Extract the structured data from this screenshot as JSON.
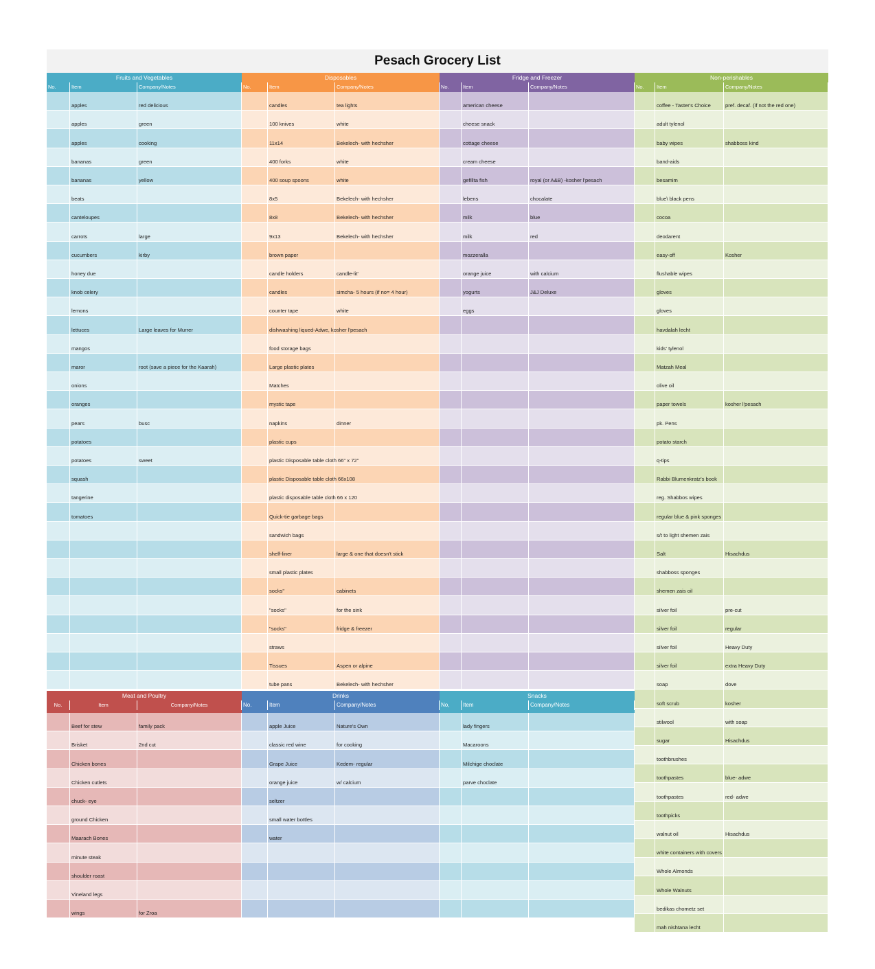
{
  "title": "Pesach Grocery List",
  "headers": {
    "no": "No.",
    "item": "Item",
    "notes": "Company/Notes"
  },
  "snacks_no_header": "No,",
  "sections": {
    "fruits": {
      "name": "Fruits and Vegetables",
      "colors": {
        "header": "#4bacc6",
        "dark": "#b7dde8",
        "light": "#dbeef3"
      },
      "rows": [
        [
          "apples",
          "red delicious"
        ],
        [
          "apples",
          "green"
        ],
        [
          "apples",
          "cooking"
        ],
        [
          "bananas",
          "green"
        ],
        [
          "bananas",
          "yellow"
        ],
        [
          "beats",
          ""
        ],
        [
          "canteloupes",
          ""
        ],
        [
          "carrots",
          "large"
        ],
        [
          "cucumbers",
          " kirby"
        ],
        [
          "honey due",
          ""
        ],
        [
          "knob celery",
          ""
        ],
        [
          "lemons",
          ""
        ],
        [
          "lettuces",
          "Large leaves for Murrer"
        ],
        [
          "mangos",
          ""
        ],
        [
          "maror",
          "root (save a piece for the Kaarah)"
        ],
        [
          "onions",
          ""
        ],
        [
          "oranges",
          ""
        ],
        [
          "pears",
          "busc"
        ],
        [
          "potatoes",
          ""
        ],
        [
          "potatoes",
          "sweet"
        ],
        [
          "squash",
          ""
        ],
        [
          "tangerine",
          ""
        ],
        [
          "tomatoes",
          ""
        ],
        [
          "",
          ""
        ],
        [
          "",
          ""
        ],
        [
          "",
          ""
        ],
        [
          "",
          ""
        ],
        [
          "",
          ""
        ],
        [
          "",
          ""
        ],
        [
          "",
          ""
        ],
        [
          "",
          ""
        ],
        [
          "",
          ""
        ]
      ]
    },
    "disposables": {
      "name": "Disposables",
      "colors": {
        "header": "#f79646",
        "dark": "#fcd5b4",
        "light": "#fde9d9"
      },
      "rows": [
        [
          " candles",
          "tea lights"
        ],
        [
          "100 knives",
          "white"
        ],
        [
          "11x14",
          "Bekelech- with hechsher"
        ],
        [
          "400 forks",
          "white"
        ],
        [
          "400 soup spoons",
          "white"
        ],
        [
          "8x5",
          "Bekelech- with hechsher"
        ],
        [
          "8x8",
          "Bekelech- with hechsher"
        ],
        [
          "9x13",
          "Bekelech- with hechsher"
        ],
        [
          "brown paper",
          ""
        ],
        [
          "candle holders",
          "candle-lit'"
        ],
        [
          "candles",
          "simcha- 5 hours (if no= 4 hour)"
        ],
        [
          "counter tape",
          "white"
        ],
        [
          "dishwashing liqued-Adwe, kosher l'pesach",
          ""
        ],
        [
          "food storage bags",
          ""
        ],
        [
          "Large plastic plates",
          ""
        ],
        [
          "Matches",
          ""
        ],
        [
          "mystic tape",
          ""
        ],
        [
          "napkins",
          "dinner"
        ],
        [
          "plastic cups",
          ""
        ],
        [
          "plastic Disposable table cloth   66\" x 72\"",
          ""
        ],
        [
          "plastic Disposable table cloth   66x108",
          ""
        ],
        [
          "plastic disposable table cloth 66 x 120",
          ""
        ],
        [
          "Quick-tie garbage bags",
          ""
        ],
        [
          "sandwich bags",
          ""
        ],
        [
          "shelf-liner",
          "large &  one that doesn't stick"
        ],
        [
          "small plastic plates",
          ""
        ],
        [
          "socks\"",
          "cabinets"
        ],
        [
          "\"socks\"",
          "for the sink"
        ],
        [
          "\"socks\"",
          "fridge & freezer"
        ],
        [
          "straws",
          ""
        ],
        [
          "Tissues",
          "Aspen or alpine"
        ],
        [
          "tube pans",
          "Bekelech- with hechsher"
        ]
      ]
    },
    "fridge": {
      "name": "Fridge and Freezer",
      "colors": {
        "header": "#8064a2",
        "dark": "#ccc0da",
        "light": "#e4dfec"
      },
      "rows": [
        [
          "american cheese",
          ""
        ],
        [
          "cheese snack",
          ""
        ],
        [
          "cottage cheese",
          ""
        ],
        [
          "cream cheese",
          ""
        ],
        [
          "gefillta fish",
          "royal (or A&B) -kosher l'pesach"
        ],
        [
          "lebens",
          "chocalate"
        ],
        [
          "milk",
          "blue"
        ],
        [
          "milk",
          "red"
        ],
        [
          "mozzeralla",
          ""
        ],
        [
          "orange juice",
          " with calcium"
        ],
        [
          "yogurts",
          "J&J Deluxe"
        ],
        [
          "eggs",
          ""
        ],
        [
          "",
          ""
        ],
        [
          "",
          ""
        ],
        [
          "",
          ""
        ],
        [
          "",
          ""
        ],
        [
          "",
          ""
        ],
        [
          "",
          ""
        ],
        [
          "",
          ""
        ],
        [
          "",
          ""
        ],
        [
          "",
          ""
        ],
        [
          "",
          ""
        ],
        [
          "",
          ""
        ],
        [
          "",
          ""
        ],
        [
          "",
          ""
        ],
        [
          "",
          ""
        ],
        [
          "",
          ""
        ],
        [
          "",
          ""
        ],
        [
          "",
          ""
        ],
        [
          "",
          ""
        ],
        [
          "",
          ""
        ],
        [
          "",
          ""
        ]
      ]
    },
    "nonperishables": {
      "name": "Non-perishables",
      "colors": {
        "header": "#9bbb59",
        "dark": "#d8e4bc",
        "light": "#ebf1de"
      },
      "rows": [
        [
          " coffee - Taster's Choice",
          "pref. decaf. (if not the red one)"
        ],
        [
          "adult tylenol",
          ""
        ],
        [
          "baby wipes",
          "shabboss kind"
        ],
        [
          "band-aids",
          ""
        ],
        [
          "besamim",
          ""
        ],
        [
          "blue\\ black pens",
          ""
        ],
        [
          "cocoa",
          ""
        ],
        [
          "deodarent",
          ""
        ],
        [
          "easy-off",
          "Kosher"
        ],
        [
          "flushable wipes",
          ""
        ],
        [
          "gloves",
          ""
        ],
        [
          "gloves",
          ""
        ],
        [
          "havdalah lecht",
          ""
        ],
        [
          "kids' tylenol",
          ""
        ],
        [
          "Matzah Meal",
          ""
        ],
        [
          "olive oil",
          ""
        ],
        [
          "paper towels",
          "kosher l'pesach"
        ],
        [
          "pk. Pens",
          ""
        ],
        [
          "potato starch",
          ""
        ],
        [
          "q-tips",
          ""
        ],
        [
          "Rabbi Blumenkratz's book",
          ""
        ],
        [
          "reg. Shabbos wipes",
          ""
        ],
        [
          "regular blue & pink sponges",
          ""
        ],
        [
          "s/t to light shemen zais",
          ""
        ],
        [
          "Salt",
          "Hisachdus"
        ],
        [
          "shabboss sponges",
          ""
        ],
        [
          "shemen zais oil",
          ""
        ],
        [
          "silver foil",
          "pre-cut"
        ],
        [
          "silver foil",
          "regular"
        ],
        [
          "silver foil",
          "Heavy Duty"
        ],
        [
          "silver foil",
          "extra Heavy Duty"
        ],
        [
          "soap",
          "dove"
        ],
        [
          "soft scrub",
          "kosher"
        ],
        [
          "stilwool",
          "with soap"
        ],
        [
          "sugar",
          "Hisachdus"
        ],
        [
          "toothbrushes",
          ""
        ],
        [
          "toothpastes",
          "blue- adwe"
        ],
        [
          "toothpastes",
          "red- adwe"
        ],
        [
          "toothpicks",
          ""
        ],
        [
          "walnut oil",
          "Hisachdus"
        ],
        [
          "white containers with covers",
          ""
        ],
        [
          "Whole Almonds",
          ""
        ],
        [
          "Whole Walnuts",
          ""
        ],
        [
          "bedikas chometz set",
          ""
        ],
        [
          "mah nishtana lecht",
          ""
        ]
      ]
    },
    "meat": {
      "name": "Meat and Poultry",
      "colors": {
        "header": "#c0504d",
        "dark": "#e6b8b7",
        "light": "#f2dcdb"
      },
      "rows": [
        [
          "Beef for stew",
          "family pack"
        ],
        [
          "Brisket",
          "2nd cut"
        ],
        [
          "Chicken bones",
          ""
        ],
        [
          "Chicken cutlets",
          ""
        ],
        [
          "chuck- eye",
          ""
        ],
        [
          "ground Chicken",
          ""
        ],
        [
          "Maarach Bones",
          ""
        ],
        [
          "minute steak",
          ""
        ],
        [
          "shoulder roast",
          ""
        ],
        [
          "Vineland legs",
          ""
        ],
        [
          "wings",
          "for Zroa"
        ]
      ]
    },
    "drinks": {
      "name": "Drinks",
      "colors": {
        "header": "#4f81bd",
        "dark": "#b8cce4",
        "light": "#dce6f1"
      },
      "rows": [
        [
          "apple Juice",
          "Nature's Own"
        ],
        [
          "classic red wine",
          "for cooking"
        ],
        [
          "Grape Juice",
          "Kedem- regular"
        ],
        [
          "orange juice",
          "w/ calcium"
        ],
        [
          "seltzer",
          ""
        ],
        [
          "small water bottles",
          ""
        ],
        [
          "water",
          ""
        ],
        [
          "",
          ""
        ],
        [
          "",
          ""
        ],
        [
          "",
          ""
        ],
        [
          "",
          ""
        ]
      ]
    },
    "snacks": {
      "name": "Snacks",
      "colors": {
        "header": "#4bacc6",
        "dark": "#b7dde8",
        "light": "#daeef3"
      },
      "rows": [
        [
          "lady fingers",
          ""
        ],
        [
          "Macaroons",
          ""
        ],
        [
          "Milchige choclate",
          ""
        ],
        [
          "parve choclate",
          ""
        ],
        [
          "",
          ""
        ],
        [
          "",
          ""
        ],
        [
          "",
          ""
        ],
        [
          "",
          ""
        ],
        [
          "",
          ""
        ],
        [
          "",
          ""
        ],
        [
          "",
          ""
        ]
      ]
    }
  }
}
